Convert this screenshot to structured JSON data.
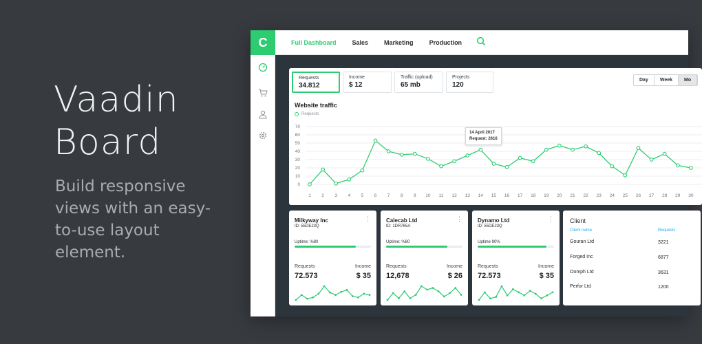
{
  "hero": {
    "title_line1": "Vaadin",
    "title_line2": "Board",
    "subtitle": "Build responsive views with an easy-to-use layout element."
  },
  "app": {
    "logo": "C",
    "rail_icons": [
      "dashboard-icon",
      "cart-icon",
      "user-icon",
      "gear-icon"
    ],
    "tabs": [
      "Full Dashboard",
      "Sales",
      "Marketing",
      "Production"
    ],
    "active_tab": "Full Dashboard",
    "accent": "#2ecc71",
    "kpis": [
      {
        "label": "Requests",
        "value": "34.812"
      },
      {
        "label": "Income",
        "value": "$ 12"
      },
      {
        "label": "Traffic (upload)",
        "value": "65 mb"
      },
      {
        "label": "Projects",
        "value": "120"
      }
    ],
    "range": [
      "Day",
      "Week",
      "Mo"
    ],
    "chart_title": "Website traffic",
    "legend": "Requests",
    "tooltip": {
      "date": "14 April 2017",
      "text": "Request: 2616"
    },
    "servers": [
      {
        "name": "Milkyway Inc",
        "id": "ID: 55DE23Q",
        "uptime": "Uptime: %80",
        "uptime_value": 0.8,
        "requests_label": "Requests",
        "requests": "72.573",
        "income_label": "Income",
        "income": "$ 35",
        "spark": [
          12,
          20,
          14,
          16,
          22,
          34,
          24,
          20,
          25,
          28,
          18,
          16,
          22,
          20
        ]
      },
      {
        "name": "Calecab Ltd",
        "id": "ID: 1DR765A",
        "uptime": "Uptime: %80",
        "uptime_value": 0.8,
        "requests_label": "Requests",
        "requests": "12,678",
        "income_label": "Income",
        "income": "$ 26",
        "spark": [
          12,
          20,
          14,
          22,
          14,
          18,
          28,
          24,
          26,
          22,
          16,
          20,
          26,
          18
        ]
      },
      {
        "name": "Dynamo Ltd",
        "id": "ID: 55DE23Q",
        "uptime": "Uptime 90%",
        "uptime_value": 0.9,
        "requests_label": "Requests",
        "requests": "72.573",
        "income_label": "Income",
        "income": "$ 35",
        "spark": [
          12,
          22,
          14,
          16,
          30,
          18,
          26,
          22,
          18,
          24,
          20,
          14,
          18,
          22
        ]
      }
    ],
    "client_table": {
      "title": "Client",
      "columns": [
        "Client name",
        "Requests"
      ],
      "rows": [
        {
          "name": "Gouran Ltd",
          "requests": "3221"
        },
        {
          "name": "Forged Inc",
          "requests": "6877"
        },
        {
          "name": "Oomph Ltd",
          "requests": "3631"
        },
        {
          "name": "Perfor Ltd",
          "requests": "1200"
        }
      ]
    }
  },
  "chart_data": {
    "type": "line",
    "title": "Website traffic",
    "x": [
      "1",
      "2",
      "3",
      "4",
      "5",
      "6",
      "7",
      "8",
      "9",
      "10",
      "11",
      "12",
      "13",
      "14",
      "15",
      "16",
      "17",
      "18",
      "19",
      "20",
      "21",
      "22",
      "23",
      "24",
      "25",
      "26",
      "27",
      "28",
      "29",
      "30"
    ],
    "series": [
      {
        "name": "Requests",
        "values": [
          0,
          18,
          1,
          6,
          17,
          53,
          40,
          36,
          37,
          31,
          22,
          28,
          35,
          42,
          25,
          21,
          32,
          28,
          42,
          47,
          42,
          46,
          38,
          22,
          11,
          44,
          30,
          37,
          23,
          20
        ]
      }
    ],
    "ylim": [
      0,
      70
    ],
    "yticks": [
      0,
      10,
      20,
      30,
      40,
      50,
      60,
      70
    ],
    "grid": true,
    "legend_position": "top-left"
  }
}
